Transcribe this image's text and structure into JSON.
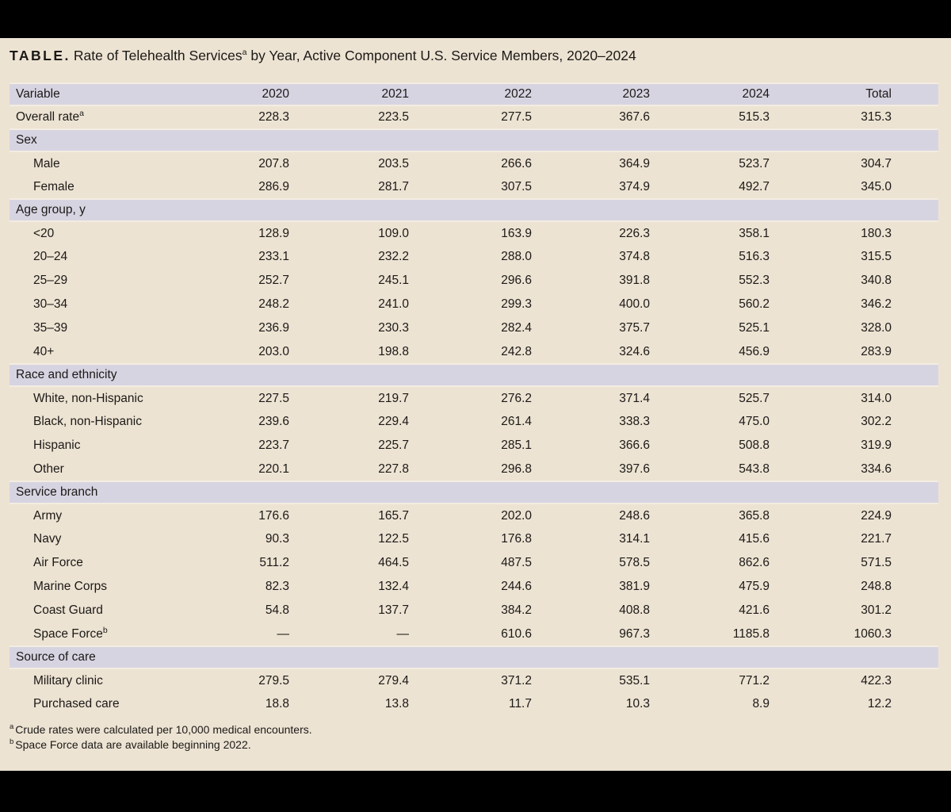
{
  "title": {
    "label": "TABLE.",
    "main": "Rate of Telehealth Services",
    "main_superscript": "a",
    "rest": " by Year, Active Component U.S. Service Members, 2020–2024"
  },
  "table": {
    "columns": [
      "Variable",
      "2020",
      "2021",
      "2022",
      "2023",
      "2024",
      "Total"
    ],
    "rows": [
      {
        "type": "data",
        "indent": false,
        "label": "Overall rate",
        "sup": "a",
        "values": [
          "228.3",
          "223.5",
          "277.5",
          "367.6",
          "515.3",
          "315.3"
        ]
      },
      {
        "type": "section",
        "label": "Sex"
      },
      {
        "type": "data",
        "indent": true,
        "label": "Male",
        "sup": "",
        "values": [
          "207.8",
          "203.5",
          "266.6",
          "364.9",
          "523.7",
          "304.7"
        ]
      },
      {
        "type": "data",
        "indent": true,
        "label": "Female",
        "sup": "",
        "values": [
          "286.9",
          "281.7",
          "307.5",
          "374.9",
          "492.7",
          "345.0"
        ]
      },
      {
        "type": "section",
        "label": "Age group, y"
      },
      {
        "type": "data",
        "indent": true,
        "label": "<20",
        "sup": "",
        "values": [
          "128.9",
          "109.0",
          "163.9",
          "226.3",
          "358.1",
          "180.3"
        ]
      },
      {
        "type": "data",
        "indent": true,
        "label": "20–24",
        "sup": "",
        "values": [
          "233.1",
          "232.2",
          "288.0",
          "374.8",
          "516.3",
          "315.5"
        ]
      },
      {
        "type": "data",
        "indent": true,
        "label": "25–29",
        "sup": "",
        "values": [
          "252.7",
          "245.1",
          "296.6",
          "391.8",
          "552.3",
          "340.8"
        ]
      },
      {
        "type": "data",
        "indent": true,
        "label": "30–34",
        "sup": "",
        "values": [
          "248.2",
          "241.0",
          "299.3",
          "400.0",
          "560.2",
          "346.2"
        ]
      },
      {
        "type": "data",
        "indent": true,
        "label": "35–39",
        "sup": "",
        "values": [
          "236.9",
          "230.3",
          "282.4",
          "375.7",
          "525.1",
          "328.0"
        ]
      },
      {
        "type": "data",
        "indent": true,
        "label": "40+",
        "sup": "",
        "values": [
          "203.0",
          "198.8",
          "242.8",
          "324.6",
          "456.9",
          "283.9"
        ]
      },
      {
        "type": "section",
        "label": "Race and ethnicity"
      },
      {
        "type": "data",
        "indent": true,
        "label": "White, non-Hispanic",
        "sup": "",
        "values": [
          "227.5",
          "219.7",
          "276.2",
          "371.4",
          "525.7",
          "314.0"
        ]
      },
      {
        "type": "data",
        "indent": true,
        "label": "Black, non-Hispanic",
        "sup": "",
        "values": [
          "239.6",
          "229.4",
          "261.4",
          "338.3",
          "475.0",
          "302.2"
        ]
      },
      {
        "type": "data",
        "indent": true,
        "label": "Hispanic",
        "sup": "",
        "values": [
          "223.7",
          "225.7",
          "285.1",
          "366.6",
          "508.8",
          "319.9"
        ]
      },
      {
        "type": "data",
        "indent": true,
        "label": "Other",
        "sup": "",
        "values": [
          "220.1",
          "227.8",
          "296.8",
          "397.6",
          "543.8",
          "334.6"
        ]
      },
      {
        "type": "section",
        "label": "Service branch"
      },
      {
        "type": "data",
        "indent": true,
        "label": "Army",
        "sup": "",
        "values": [
          "176.6",
          "165.7",
          "202.0",
          "248.6",
          "365.8",
          "224.9"
        ]
      },
      {
        "type": "data",
        "indent": true,
        "label": "Navy",
        "sup": "",
        "values": [
          "90.3",
          "122.5",
          "176.8",
          "314.1",
          "415.6",
          "221.7"
        ]
      },
      {
        "type": "data",
        "indent": true,
        "label": "Air Force",
        "sup": "",
        "values": [
          "511.2",
          "464.5",
          "487.5",
          "578.5",
          "862.6",
          "571.5"
        ]
      },
      {
        "type": "data",
        "indent": true,
        "label": "Marine Corps",
        "sup": "",
        "values": [
          "82.3",
          "132.4",
          "244.6",
          "381.9",
          "475.9",
          "248.8"
        ]
      },
      {
        "type": "data",
        "indent": true,
        "label": "Coast Guard",
        "sup": "",
        "values": [
          "54.8",
          "137.7",
          "384.2",
          "408.8",
          "421.6",
          "301.2"
        ]
      },
      {
        "type": "data",
        "indent": true,
        "label": "Space Force",
        "sup": "b",
        "values": [
          "—",
          "—",
          "610.6",
          "967.3",
          "1185.8",
          "1060.3"
        ]
      },
      {
        "type": "section",
        "label": "Source of care"
      },
      {
        "type": "data",
        "indent": true,
        "label": "Military clinic",
        "sup": "",
        "values": [
          "279.5",
          "279.4",
          "371.2",
          "535.1",
          "771.2",
          "422.3"
        ]
      },
      {
        "type": "data",
        "indent": true,
        "label": "Purchased care",
        "sup": "",
        "values": [
          "18.8",
          "13.8",
          "11.7",
          "10.3",
          "8.9",
          "12.2"
        ]
      }
    ]
  },
  "footnotes": [
    {
      "marker": "a",
      "text": "Crude rates were calculated per 10,000 medical encounters."
    },
    {
      "marker": "b",
      "text": "Space Force data are available beginning 2022."
    }
  ],
  "colors": {
    "page_background": "#ede3d3",
    "band_background": "#d7d4e2",
    "frame_bars": "#000000",
    "text": "#1b1916"
  }
}
